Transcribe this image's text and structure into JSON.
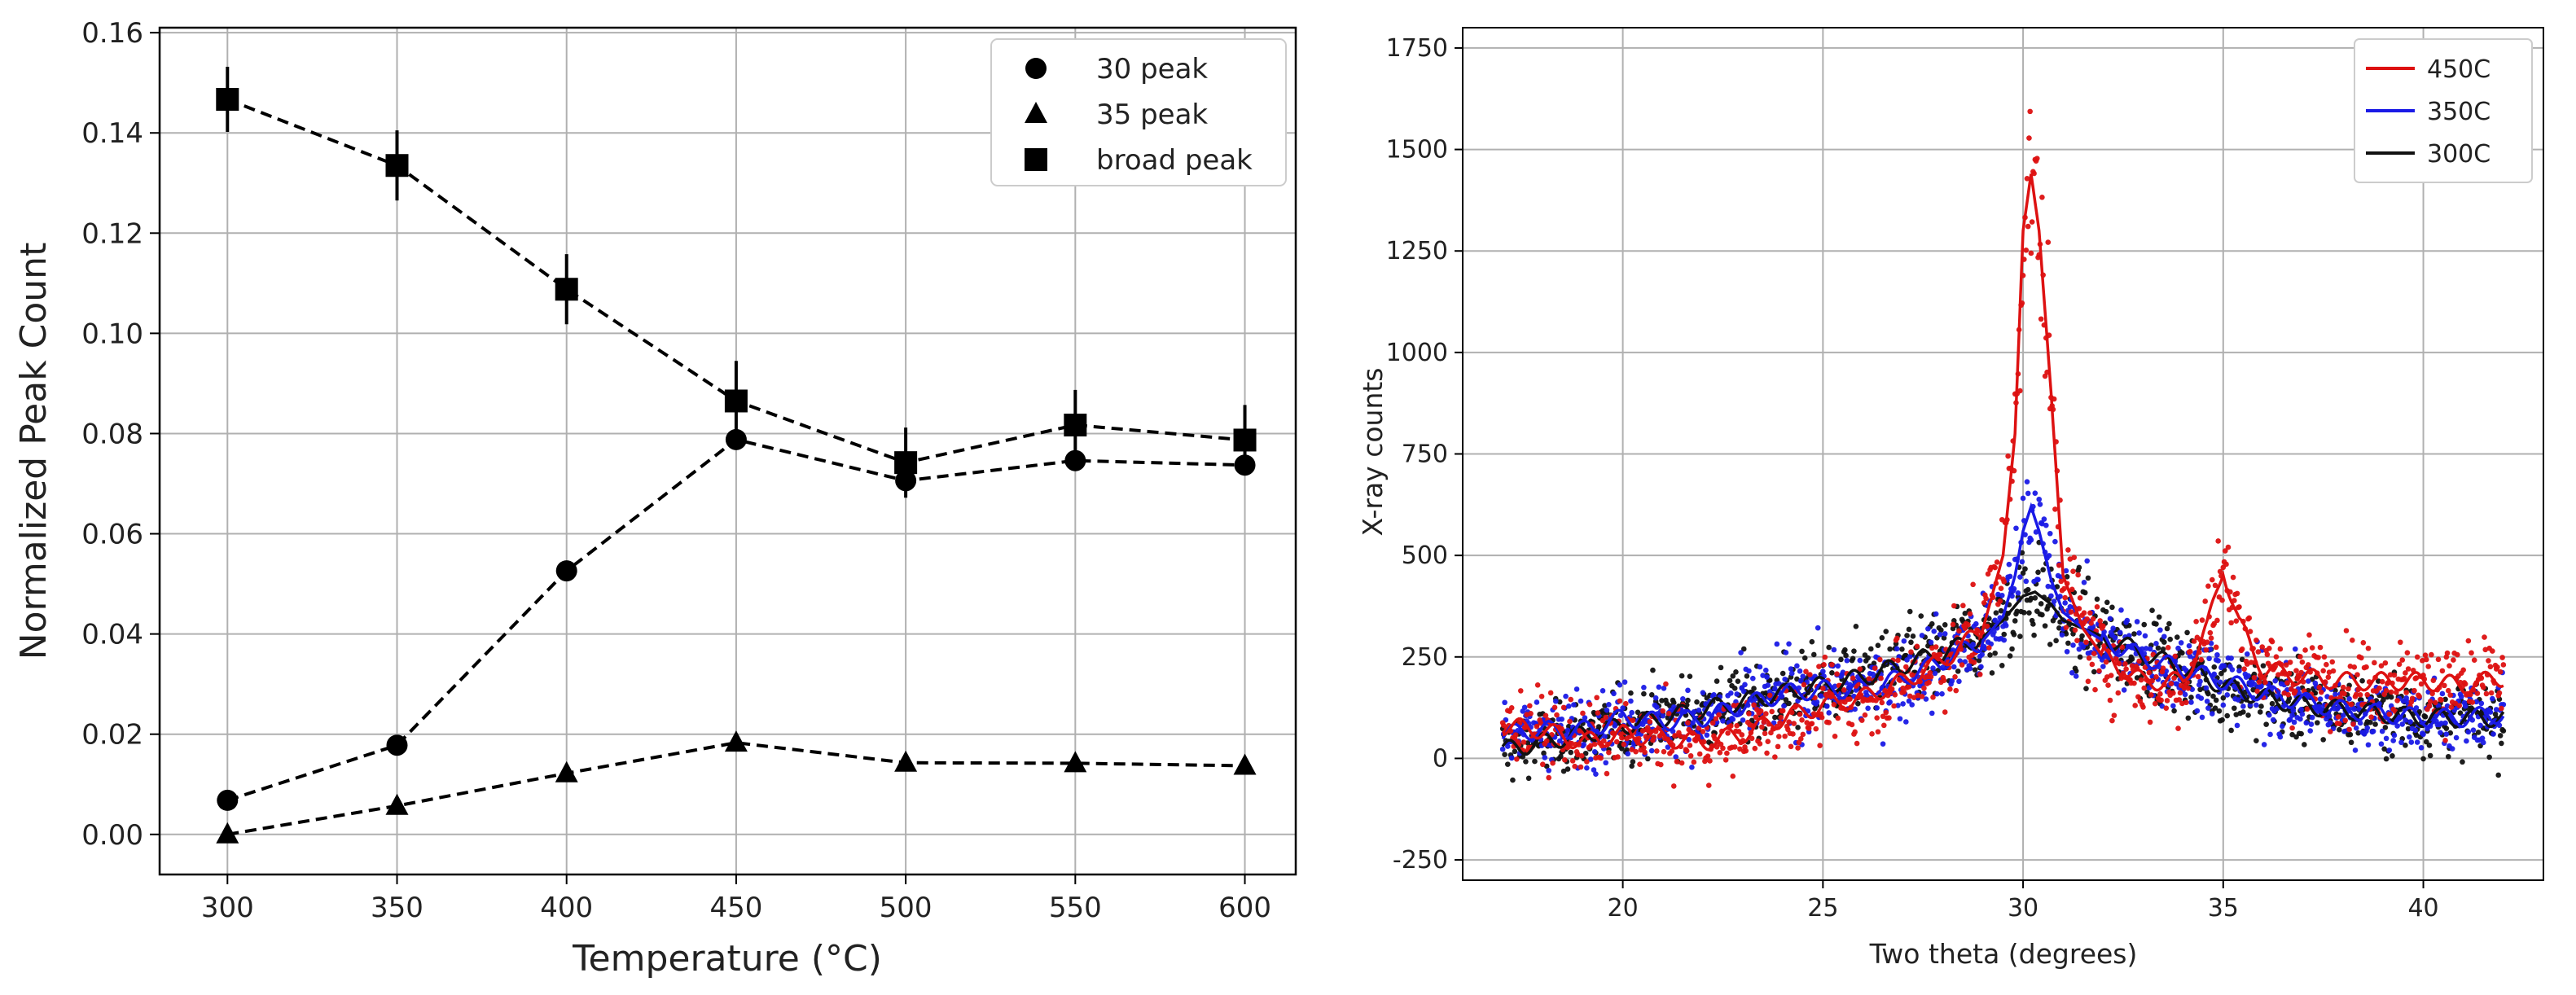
{
  "chart_data": [
    {
      "type": "line",
      "title": "",
      "xlabel": "Temperature (°C)",
      "ylabel": "Normalized Peak Count",
      "xlim": [
        280,
        615
      ],
      "ylim": [
        -0.008,
        0.161
      ],
      "xticks": [
        300,
        350,
        400,
        450,
        500,
        550,
        600
      ],
      "yticks": [
        0.0,
        0.02,
        0.04,
        0.06,
        0.08,
        0.1,
        0.12,
        0.14,
        0.16
      ],
      "ytick_labels": [
        "0.00",
        "0.02",
        "0.04",
        "0.06",
        "0.08",
        "0.10",
        "0.12",
        "0.14",
        "0.16"
      ],
      "grid": true,
      "legend_position": "top-right",
      "line_style": "dashed",
      "x": [
        300,
        350,
        400,
        450,
        500,
        550,
        600
      ],
      "series": [
        {
          "name": "30 peak",
          "marker": "circle",
          "color": "#000000",
          "values": [
            0.0068,
            0.0178,
            0.0526,
            0.0788,
            0.0706,
            0.0746,
            0.0737
          ],
          "errors": [
            0,
            0,
            0,
            0,
            0.002,
            0,
            0
          ]
        },
        {
          "name": "35 peak",
          "marker": "triangle",
          "color": "#000000",
          "values": [
            0.0,
            0.0057,
            0.0122,
            0.0183,
            0.0143,
            0.0142,
            0.0137
          ],
          "errors": [
            0,
            0,
            0,
            0,
            0,
            0,
            0
          ]
        },
        {
          "name": "broad peak",
          "marker": "square",
          "color": "#000000",
          "values": [
            0.1467,
            0.1335,
            0.1088,
            0.0865,
            0.0742,
            0.0817,
            0.0787
          ],
          "errors": [
            0.0065,
            0.007,
            0.007,
            0.008,
            0.007,
            0.007,
            0.007
          ]
        }
      ]
    },
    {
      "type": "scatter",
      "title": "",
      "xlabel": "Two theta (degrees)",
      "ylabel": "X-ray counts",
      "xlim": [
        16.0,
        43.0
      ],
      "ylim": [
        -300,
        1800
      ],
      "xticks": [
        20,
        25,
        30,
        35,
        40
      ],
      "yticks": [
        -250,
        0,
        250,
        500,
        750,
        1000,
        1250,
        1500,
        1750
      ],
      "grid": true,
      "legend_position": "top-right",
      "series": [
        {
          "name": "450C",
          "color": "#dd1111",
          "x": [
            17,
            18,
            19,
            20,
            21,
            22,
            23,
            24,
            25,
            26,
            27,
            28,
            29,
            29.5,
            29.8,
            30,
            30.2,
            30.4,
            30.7,
            31,
            31.5,
            32,
            33,
            34,
            34.6,
            35,
            35.4,
            36,
            37,
            38,
            39,
            40,
            41,
            42
          ],
          "values": [
            80,
            70,
            40,
            60,
            50,
            40,
            60,
            100,
            130,
            150,
            190,
            240,
            320,
            500,
            800,
            1300,
            1440,
            1300,
            900,
            450,
            320,
            250,
            190,
            190,
            320,
            470,
            330,
            220,
            200,
            190,
            190,
            190,
            180,
            200
          ]
        },
        {
          "name": "350C",
          "color": "#1a1ae6",
          "x": [
            17,
            18,
            19,
            20,
            21,
            22,
            23,
            24,
            25,
            26,
            27,
            28,
            29,
            29.5,
            29.8,
            30,
            30.2,
            30.4,
            30.7,
            31,
            31.5,
            32,
            33,
            34,
            35,
            36,
            37,
            38,
            39,
            40,
            41,
            42
          ],
          "values": [
            60,
            70,
            70,
            100,
            90,
            100,
            130,
            160,
            170,
            170,
            200,
            240,
            290,
            350,
            450,
            560,
            620,
            560,
            440,
            360,
            320,
            290,
            250,
            220,
            190,
            160,
            140,
            120,
            110,
            100,
            100,
            110
          ]
        },
        {
          "name": "300C",
          "color": "#111111",
          "x": [
            17,
            18,
            19,
            20,
            21,
            22,
            23,
            24,
            25,
            26,
            27,
            28,
            29,
            29.5,
            30,
            30.3,
            30.7,
            31,
            32,
            33,
            34,
            35,
            36,
            37,
            38,
            39,
            40,
            41,
            42
          ],
          "values": [
            20,
            40,
            60,
            80,
            100,
            120,
            140,
            160,
            180,
            200,
            230,
            260,
            300,
            340,
            400,
            410,
            380,
            340,
            300,
            260,
            220,
            180,
            150,
            130,
            120,
            110,
            100,
            100,
            100
          ]
        }
      ]
    }
  ]
}
